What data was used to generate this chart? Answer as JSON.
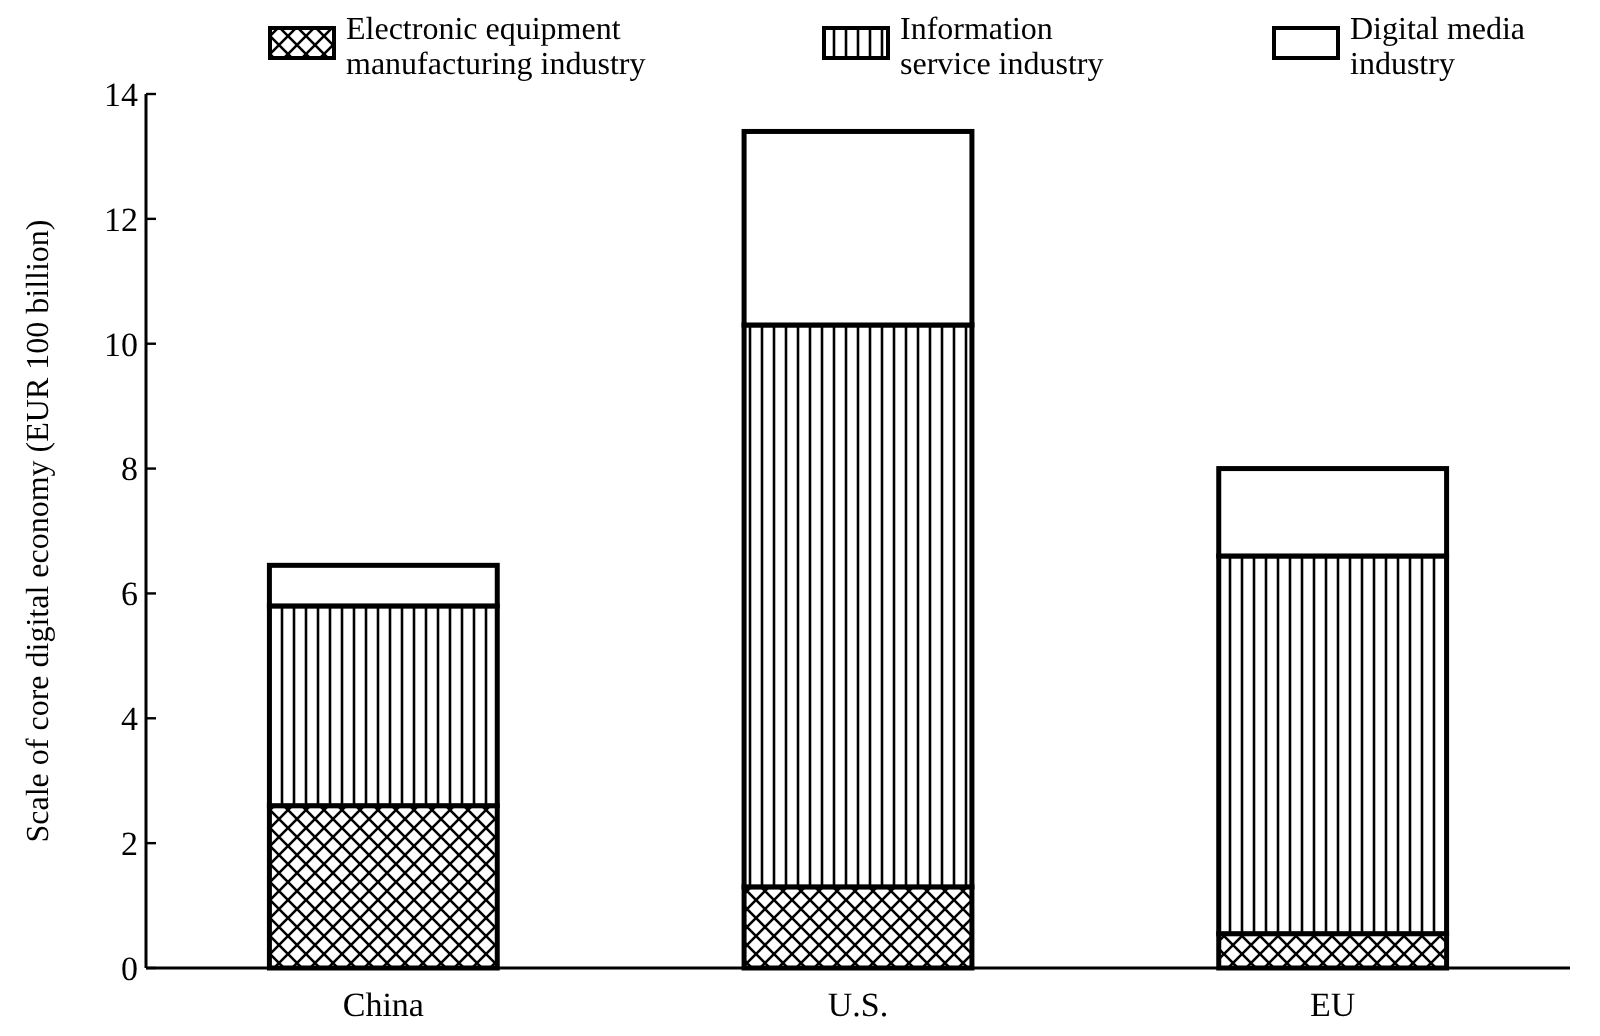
{
  "chart_data": {
    "type": "bar",
    "stacked": true,
    "ylabel": "Scale of core digital economy (EUR 100 billion)",
    "categories": [
      "China",
      "U.S.",
      "EU"
    ],
    "series": [
      {
        "name": "Electronic equipment manufacturing industry",
        "color": "#ffffff",
        "values": [
          2.6,
          1.3,
          0.55
        ]
      },
      {
        "name": "Information service industry",
        "color": "#ffffff",
        "values": [
          3.2,
          9.0,
          6.05
        ]
      },
      {
        "name": "Digital media industry",
        "color": "#ffffff",
        "values": [
          0.65,
          3.1,
          1.4
        ]
      }
    ],
    "ylim": [
      0,
      14
    ],
    "yticks": [
      0,
      2,
      4,
      6,
      8,
      10,
      12,
      14
    ],
    "grid": false,
    "legend": "top"
  }
}
